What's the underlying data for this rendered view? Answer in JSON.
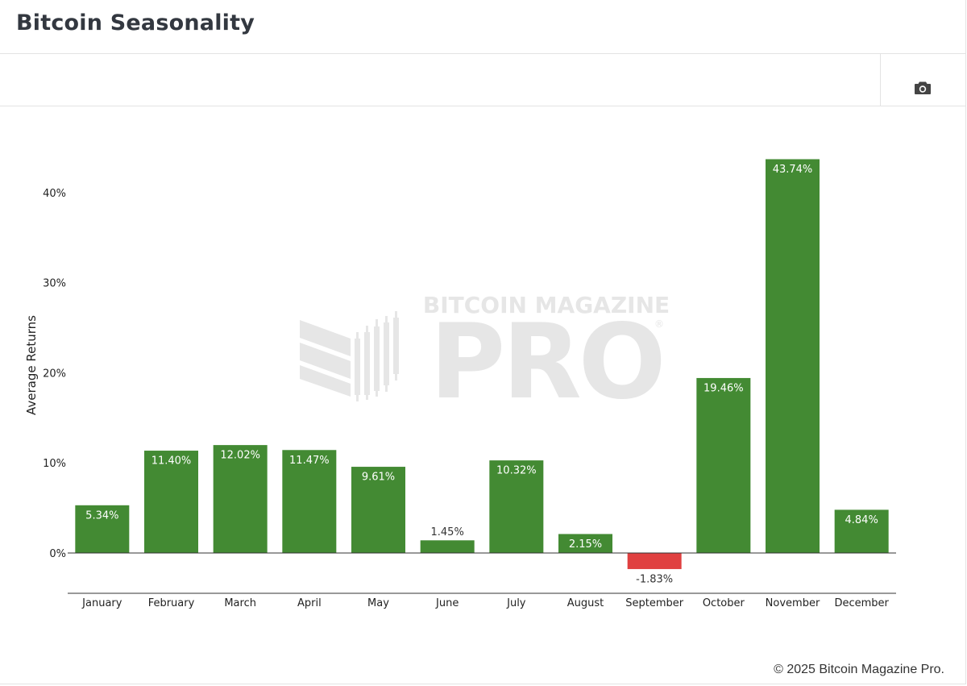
{
  "header": {
    "title": "Bitcoin Seasonality"
  },
  "toolbar": {
    "camera_icon": "camera-icon"
  },
  "watermark": {
    "line1": "BITCOIN MAGAZINE",
    "line2": "PRO",
    "registered": "®"
  },
  "footer": {
    "copyright": "© 2025 Bitcoin Magazine Pro."
  },
  "colors": {
    "positive": "#438a33",
    "negative": "#e04040",
    "watermark": "#e8e8e8"
  },
  "chart_data": {
    "type": "bar",
    "ylabel": "Average Returns",
    "xlabel": "",
    "categories": [
      "January",
      "February",
      "March",
      "April",
      "May",
      "June",
      "July",
      "August",
      "September",
      "October",
      "November",
      "December"
    ],
    "values": [
      5.34,
      11.4,
      12.02,
      11.47,
      9.61,
      1.45,
      10.32,
      2.15,
      -1.83,
      19.46,
      43.74,
      4.84
    ],
    "labels": [
      "5.34%",
      "11.40%",
      "12.02%",
      "11.47%",
      "9.61%",
      "1.45%",
      "10.32%",
      "2.15%",
      "-1.83%",
      "19.46%",
      "43.74%",
      "4.84%"
    ],
    "yticks": [
      0,
      10,
      20,
      30,
      40
    ],
    "ytick_labels": [
      "0%",
      "10%",
      "20%",
      "30%",
      "40%"
    ],
    "ylim": [
      -4.5,
      49
    ],
    "grid": false,
    "legend": "none"
  }
}
